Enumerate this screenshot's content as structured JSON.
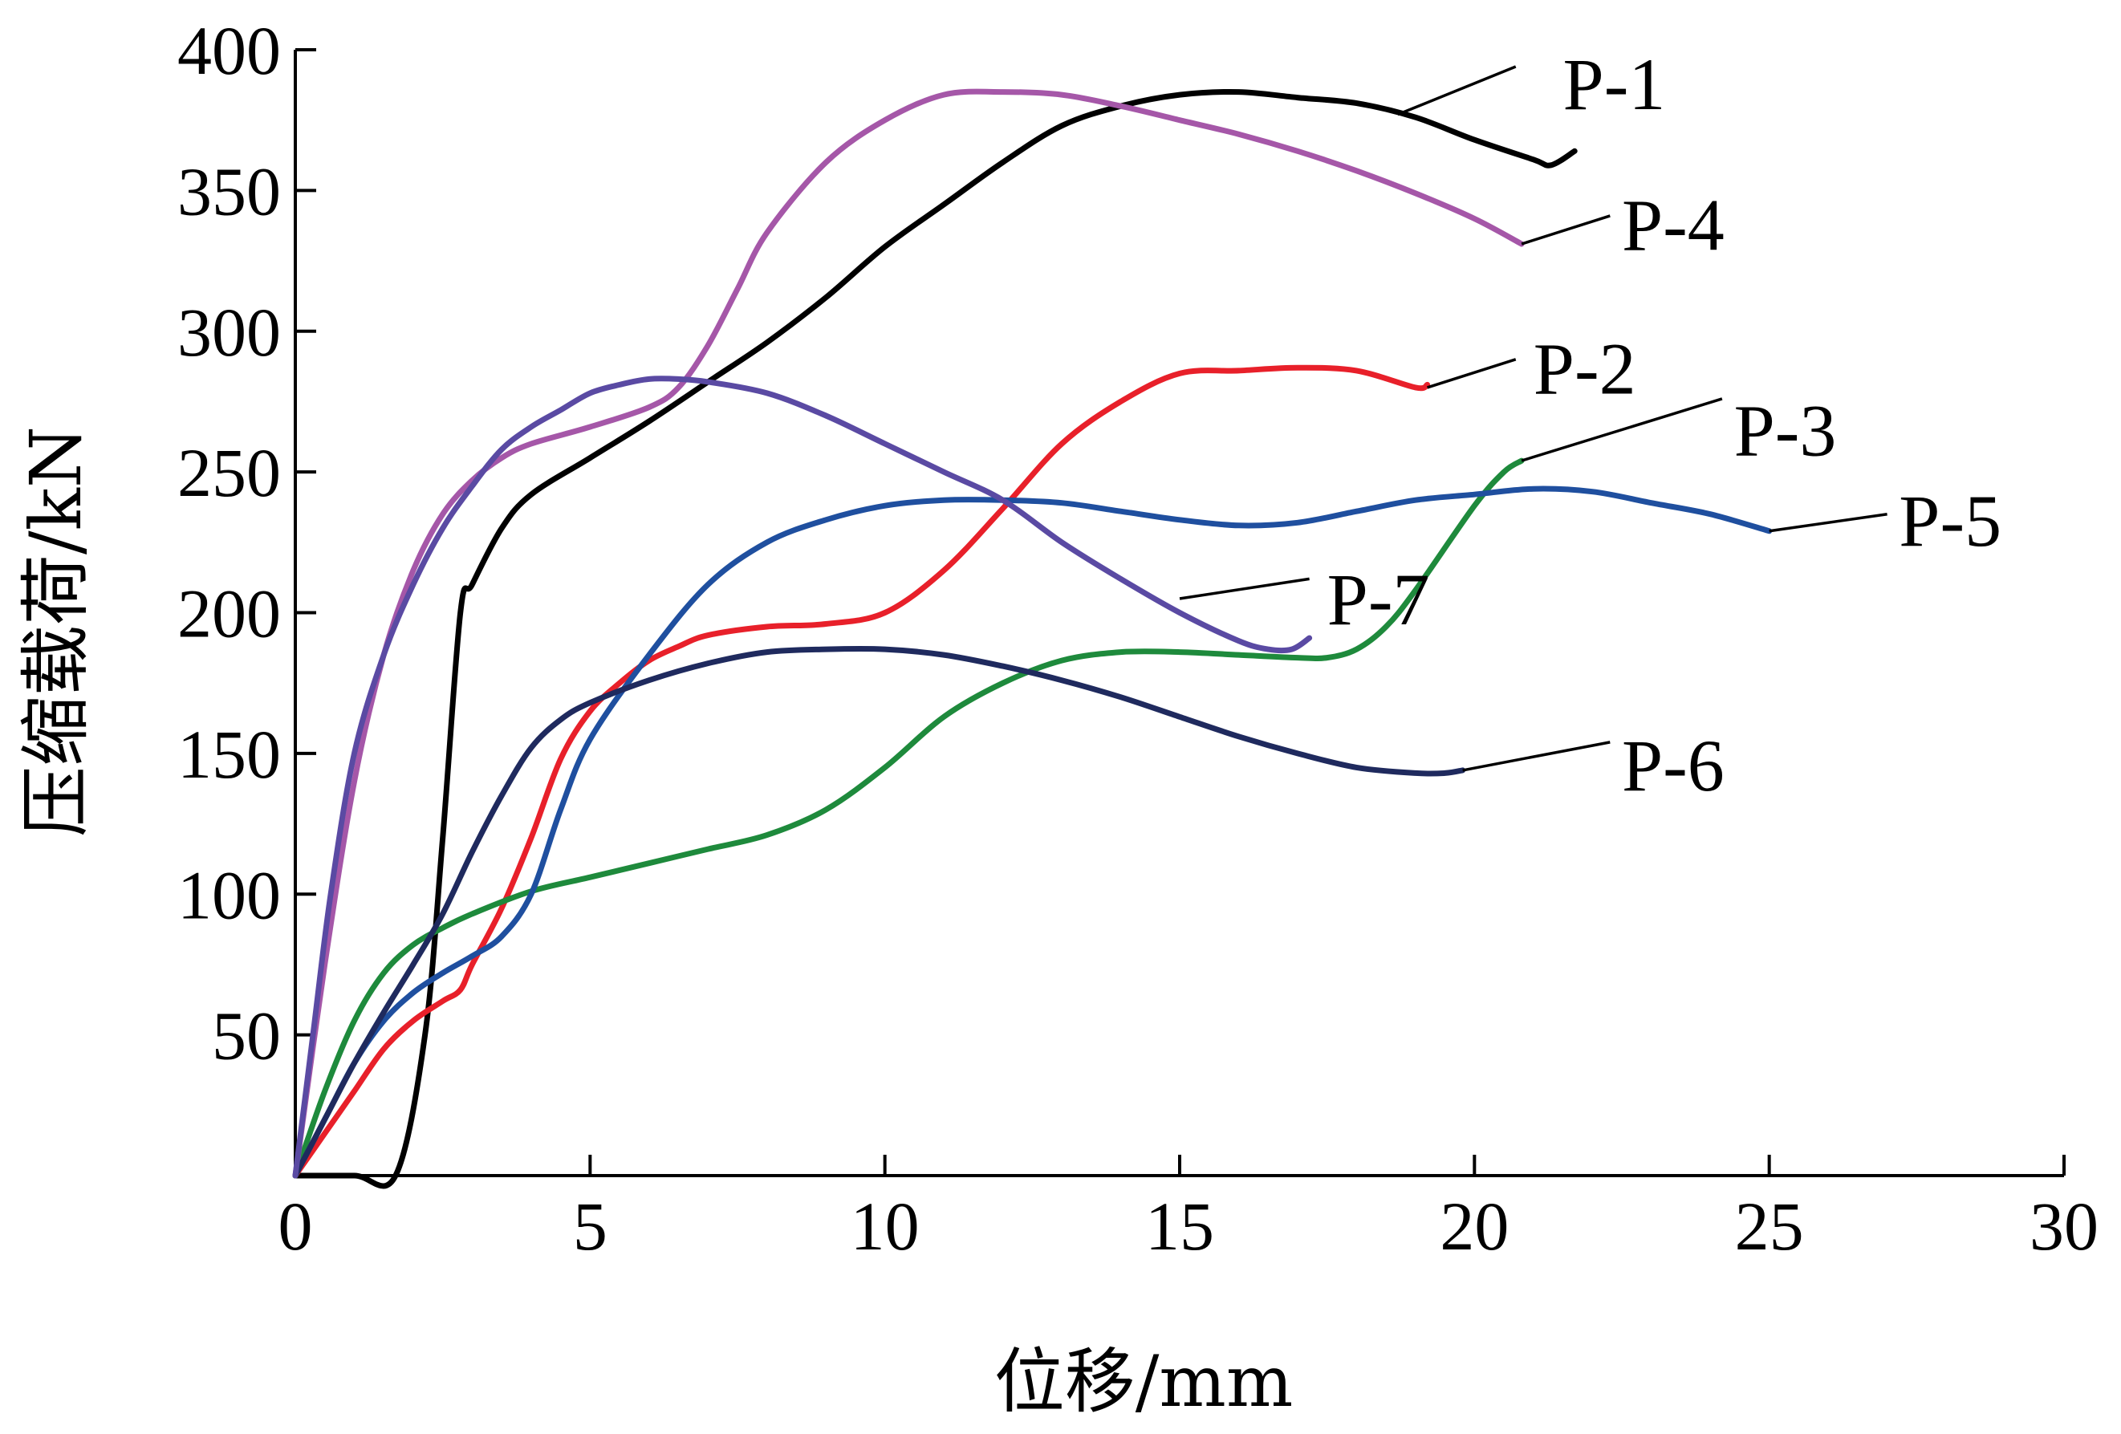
{
  "chart_data": {
    "type": "line",
    "title": "",
    "xlabel": "位移/mm",
    "ylabel": "压缩载荷/kN",
    "xlim": [
      0,
      30
    ],
    "ylim": [
      0,
      400
    ],
    "x_ticks": [
      0,
      5,
      10,
      15,
      20,
      25,
      30
    ],
    "y_ticks": [
      50,
      100,
      150,
      200,
      250,
      300,
      350,
      400
    ],
    "grid": false,
    "legend": "inline labels at curve ends",
    "series": [
      {
        "name": "P-1",
        "color": "#000000",
        "x": [
          0,
          1.0,
          1.7,
          2.2,
          2.5,
          2.8,
          3.0,
          3.5,
          4.0,
          5.0,
          6.0,
          7.0,
          8.0,
          9.0,
          10.0,
          11.0,
          12.0,
          13.0,
          14.0,
          15.0,
          16.0,
          17.0,
          18.0,
          19.0,
          20.0,
          21.0,
          21.3,
          21.7
        ],
        "y": [
          0,
          0,
          0,
          50,
          120,
          200,
          210,
          230,
          242,
          255,
          268,
          282,
          296,
          312,
          330,
          345,
          360,
          373,
          380,
          384,
          385,
          383,
          381,
          376,
          368,
          361,
          359,
          364
        ]
      },
      {
        "name": "P-2",
        "color": "#e8202a",
        "x": [
          0,
          0.5,
          1.0,
          1.5,
          2.0,
          2.5,
          2.8,
          3.0,
          3.5,
          4.0,
          4.5,
          5.0,
          5.5,
          6.0,
          6.5,
          7.0,
          8.0,
          9.0,
          10.0,
          11.0,
          12.0,
          13.0,
          14.0,
          15.0,
          16.0,
          17.0,
          18.0,
          19.0,
          19.2
        ],
        "y": [
          0,
          15,
          30,
          45,
          55,
          62,
          66,
          75,
          95,
          120,
          148,
          165,
          175,
          183,
          188,
          192,
          195,
          196,
          200,
          215,
          237,
          260,
          275,
          285,
          286,
          287,
          286,
          280,
          281
        ]
      },
      {
        "name": "P-3",
        "color": "#1e8a3c",
        "x": [
          0,
          0.5,
          1.0,
          1.5,
          2.0,
          2.5,
          3.0,
          4.0,
          5.0,
          6.0,
          7.0,
          8.0,
          9.0,
          10.0,
          11.0,
          12.0,
          13.0,
          14.0,
          15.0,
          16.0,
          17.0,
          17.5,
          18.0,
          18.5,
          19.0,
          20.0,
          20.5,
          20.8
        ],
        "y": [
          0,
          30,
          55,
          72,
          82,
          88,
          93,
          101,
          106,
          111,
          116,
          121,
          130,
          145,
          163,
          175,
          183,
          186,
          186,
          185,
          184,
          184,
          187,
          195,
          208,
          238,
          250,
          254
        ]
      },
      {
        "name": "P-4",
        "color": "#a557a8",
        "x": [
          0,
          0.5,
          1.0,
          1.5,
          2.0,
          2.5,
          3.0,
          3.5,
          4.0,
          5.0,
          6.0,
          6.5,
          7.0,
          7.5,
          8.0,
          9.0,
          10.0,
          11.0,
          12.0,
          13.0,
          14.0,
          15.0,
          16.0,
          17.0,
          18.0,
          19.0,
          20.0,
          20.8
        ],
        "y": [
          0,
          75,
          140,
          185,
          215,
          235,
          247,
          255,
          260,
          266,
          273,
          280,
          295,
          315,
          335,
          360,
          375,
          384,
          385,
          384,
          380,
          375,
          370,
          364,
          357,
          349,
          340,
          331
        ]
      },
      {
        "name": "P-5",
        "color": "#1f4f9f",
        "x": [
          0,
          0.5,
          1.0,
          1.5,
          2.0,
          2.5,
          3.0,
          3.5,
          4.0,
          4.5,
          5.0,
          6.0,
          7.0,
          8.0,
          9.0,
          10.0,
          11.0,
          12.0,
          13.0,
          14.0,
          15.0,
          16.0,
          17.0,
          18.0,
          19.0,
          20.0,
          21.0,
          22.0,
          23.0,
          24.0,
          25.0
        ],
        "y": [
          0,
          20,
          40,
          55,
          65,
          72,
          78,
          85,
          100,
          130,
          155,
          185,
          210,
          225,
          233,
          238,
          240,
          240,
          239,
          236,
          233,
          231,
          232,
          236,
          240,
          242,
          244,
          243,
          239,
          235,
          229
        ]
      },
      {
        "name": "P-6",
        "color": "#1f2a5e",
        "x": [
          0,
          0.5,
          1.0,
          1.5,
          2.0,
          2.5,
          3.0,
          3.5,
          4.0,
          4.5,
          5.0,
          6.0,
          7.0,
          8.0,
          9.0,
          10.0,
          11.0,
          12.0,
          13.0,
          14.0,
          15.0,
          16.0,
          17.0,
          18.0,
          19.0,
          19.5,
          19.8
        ],
        "y": [
          0,
          20,
          40,
          58,
          75,
          93,
          115,
          135,
          152,
          162,
          168,
          176,
          182,
          186,
          187,
          187,
          185,
          181,
          176,
          170,
          163,
          156,
          150,
          145,
          143,
          143,
          144
        ]
      },
      {
        "name": "P-7",
        "color": "#5a4aa3",
        "x": [
          0,
          0.3,
          0.6,
          1.0,
          1.5,
          2.0,
          2.5,
          3.0,
          3.5,
          4.0,
          4.5,
          5.0,
          5.5,
          6.0,
          6.5,
          7.0,
          8.0,
          9.0,
          10.0,
          11.0,
          12.0,
          13.0,
          14.0,
          15.0,
          16.0,
          16.5,
          16.9,
          17.2
        ],
        "y": [
          0,
          50,
          100,
          150,
          185,
          210,
          230,
          245,
          258,
          266,
          272,
          278,
          281,
          283,
          283,
          282,
          278,
          270,
          260,
          250,
          240,
          225,
          212,
          200,
          190,
          187,
          187,
          191
        ]
      }
    ],
    "labels": [
      {
        "series": "P-1",
        "text": "P-1",
        "x": 21.5,
        "y": 388
      },
      {
        "series": "P-4",
        "text": "P-4",
        "x": 22.5,
        "y": 338
      },
      {
        "series": "P-2",
        "text": "P-2",
        "x": 21.0,
        "y": 287
      },
      {
        "series": "P-3",
        "text": "P-3",
        "x": 24.4,
        "y": 265
      },
      {
        "series": "P-5",
        "text": "P-5",
        "x": 27.2,
        "y": 233
      },
      {
        "series": "P-7",
        "text": "P-7",
        "x": 17.5,
        "y": 205
      },
      {
        "series": "P-6",
        "text": "P-6",
        "x": 22.5,
        "y": 146
      }
    ],
    "leaders": [
      {
        "series": "P-1",
        "from": [
          18.7,
          377
        ],
        "to": [
          20.7,
          394
        ]
      },
      {
        "series": "P-4",
        "from": [
          20.8,
          331
        ],
        "to": [
          22.3,
          341
        ]
      },
      {
        "series": "P-2",
        "from": [
          19.2,
          280
        ],
        "to": [
          20.7,
          290
        ]
      },
      {
        "series": "P-3",
        "from": [
          20.8,
          254
        ],
        "to": [
          24.2,
          276
        ]
      },
      {
        "series": "P-5",
        "from": [
          25.0,
          229
        ],
        "to": [
          27.0,
          235
        ]
      },
      {
        "series": "P-7",
        "from": [
          15.0,
          205
        ],
        "to": [
          17.2,
          212
        ]
      },
      {
        "series": "P-6",
        "from": [
          19.8,
          144
        ],
        "to": [
          22.3,
          154
        ]
      }
    ]
  }
}
